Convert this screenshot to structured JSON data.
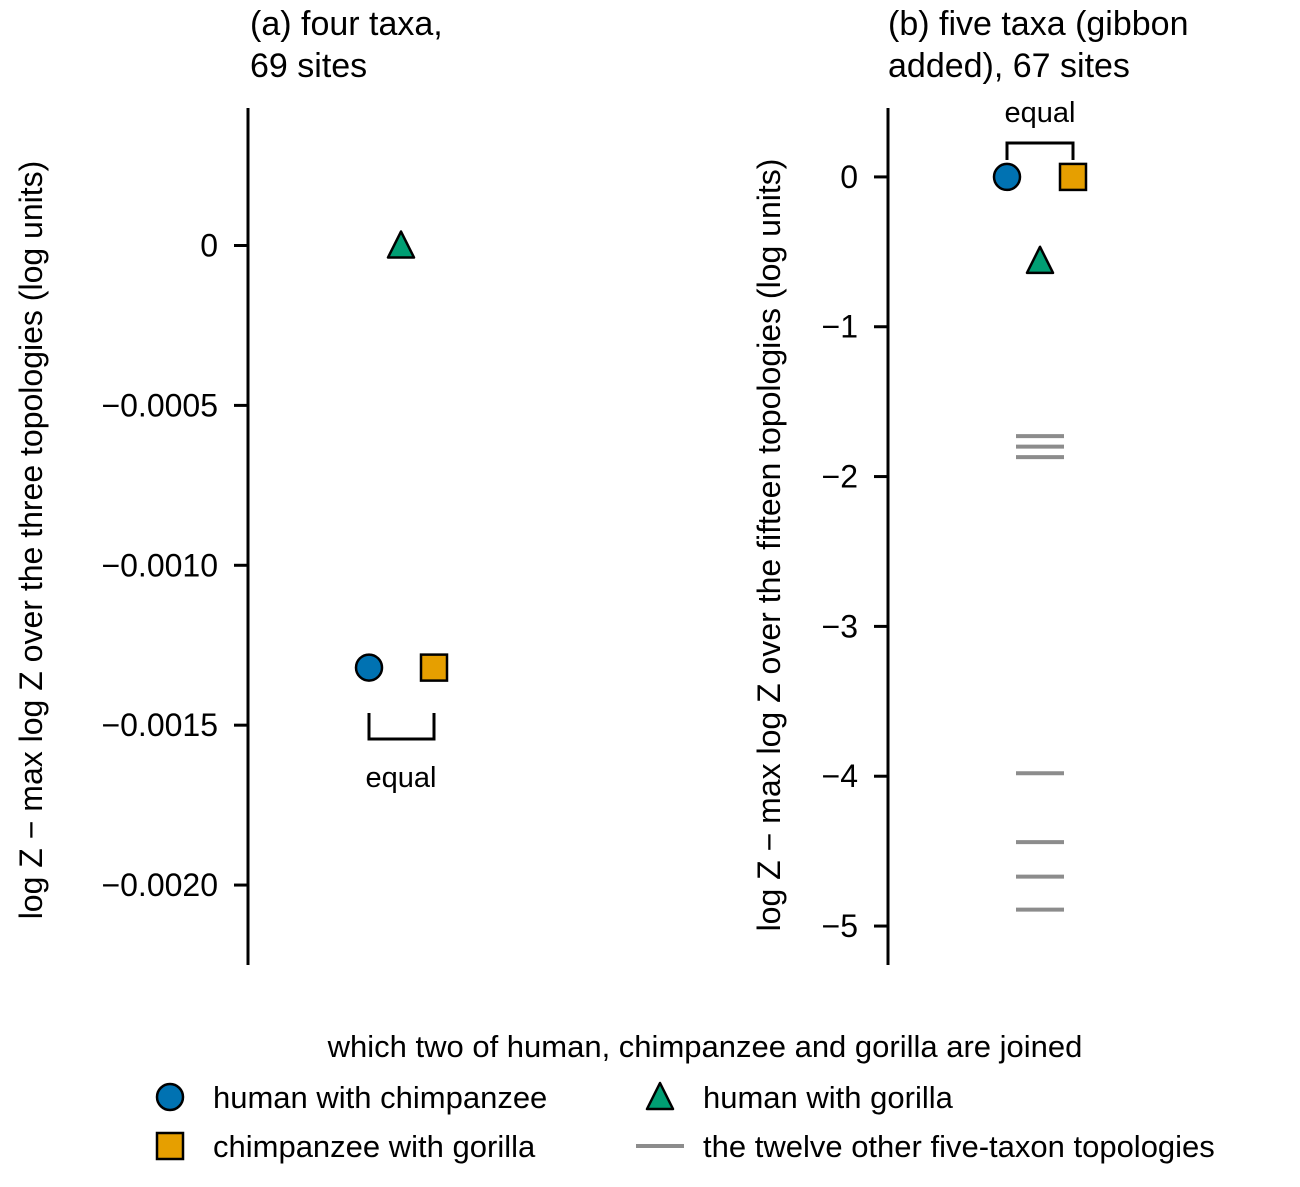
{
  "colors": {
    "human_with_chimpanzee": "#0072b2",
    "chimpanzee_with_gorilla": "#e69f00",
    "human_with_gorilla": "#009e73",
    "other_topologies": "#8c8c8c"
  },
  "chart_data": [
    {
      "type": "scatter",
      "title_lines": [
        "(a) four taxa,",
        "69 sites"
      ],
      "ylabel": "log Z − max log Z over the three topologies (log units)",
      "ylim": [
        -0.00225,
        0.00043
      ],
      "yticks": [
        0,
        -0.0005,
        -0.001,
        -0.0015,
        -0.002
      ],
      "ytick_labels": [
        "0",
        "−0.0005",
        "−0.0010",
        "−0.0015",
        "−0.0020"
      ],
      "grid": false,
      "series": [
        {
          "key": "human_with_chimpanzee",
          "marker": "circle",
          "value": -0.00132
        },
        {
          "key": "chimpanzee_with_gorilla",
          "marker": "square",
          "value": -0.00132
        },
        {
          "key": "human_with_gorilla",
          "marker": "triangle",
          "value": 0
        }
      ],
      "annotation": {
        "text": "equal",
        "position": "below"
      }
    },
    {
      "type": "scatter",
      "title_lines": [
        "(b) five taxa (gibbon",
        "added), 67 sites"
      ],
      "ylabel": "log Z − max log Z over the fifteen topologies (log units)",
      "ylim": [
        -5.26,
        0.46
      ],
      "yticks": [
        0,
        -1,
        -2,
        -3,
        -4,
        -5
      ],
      "ytick_labels": [
        "0",
        "−1",
        "−2",
        "−3",
        "−4",
        "−5"
      ],
      "grid": false,
      "series": [
        {
          "key": "human_with_chimpanzee",
          "marker": "circle",
          "value": 0
        },
        {
          "key": "chimpanzee_with_gorilla",
          "marker": "square",
          "value": 0
        },
        {
          "key": "human_with_gorilla",
          "marker": "triangle",
          "value": -0.56
        },
        {
          "key": "other_topologies",
          "marker": "dash",
          "values": [
            -1.73,
            -1.8,
            -1.87,
            -3.98,
            -4.44,
            -4.67,
            -4.89
          ]
        }
      ],
      "annotation": {
        "text": "equal",
        "position": "above"
      }
    }
  ],
  "legend": {
    "title": "which two of human, chimpanzee and gorilla are joined",
    "position": "bottom",
    "entries": [
      {
        "key": "human_with_chimpanzee",
        "marker": "circle",
        "label": "human with chimpanzee"
      },
      {
        "key": "human_with_gorilla",
        "marker": "triangle",
        "label": "human with gorilla"
      },
      {
        "key": "chimpanzee_with_gorilla",
        "marker": "square",
        "label": "chimpanzee with gorilla"
      },
      {
        "key": "other_topologies",
        "marker": "dash",
        "label": "the twelve other five-taxon topologies"
      }
    ]
  }
}
